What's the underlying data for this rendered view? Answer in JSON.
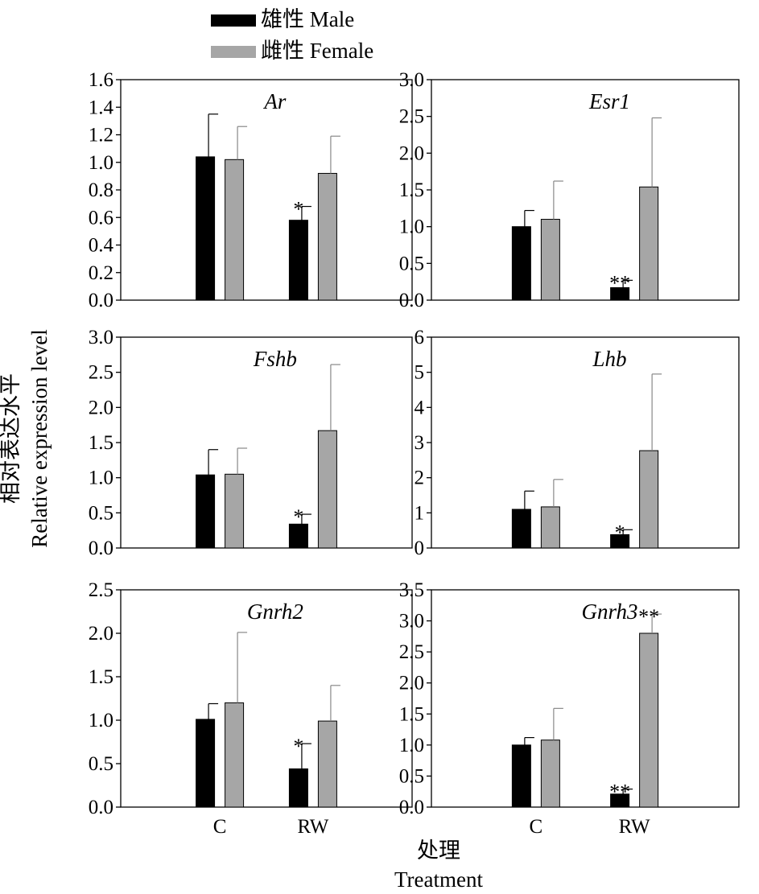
{
  "legend": {
    "male_label": "雄性 Male",
    "female_label": "雌性 Female"
  },
  "y_axis_title": {
    "zh": "相对表达水平",
    "en": "Relative expression level"
  },
  "x_axis_title": {
    "zh": "处理",
    "en": "Treatment"
  },
  "colors": {
    "male": "#000000",
    "female": "#a6a6a6",
    "axis": "#000000"
  },
  "chart_data": [
    {
      "type": "bar",
      "title": "Ar",
      "categories": [
        "C",
        "RW"
      ],
      "ylim": [
        0,
        1.6
      ],
      "yticks": [
        "0.0",
        "0.2",
        "0.4",
        "0.6",
        "0.8",
        "1.0",
        "1.2",
        "1.4",
        "1.6"
      ],
      "series": [
        {
          "name": "雄性 Male",
          "values": [
            1.04,
            0.58
          ],
          "errors": [
            0.31,
            0.1
          ],
          "significance": [
            "",
            "*"
          ]
        },
        {
          "name": "雌性 Female",
          "values": [
            1.02,
            0.92
          ],
          "errors": [
            0.24,
            0.27
          ],
          "significance": [
            "",
            ""
          ]
        }
      ]
    },
    {
      "type": "bar",
      "title": "Esr1",
      "categories": [
        "C",
        "RW"
      ],
      "ylim": [
        0,
        3.0
      ],
      "yticks": [
        "0.0",
        "0.5",
        "1.0",
        "1.5",
        "2.0",
        "2.5",
        "3.0"
      ],
      "series": [
        {
          "name": "雄性 Male",
          "values": [
            1.0,
            0.17
          ],
          "errors": [
            0.22,
            0.1
          ],
          "significance": [
            "",
            "**"
          ]
        },
        {
          "name": "雌性 Female",
          "values": [
            1.1,
            1.54
          ],
          "errors": [
            0.52,
            0.94
          ],
          "significance": [
            "",
            ""
          ]
        }
      ]
    },
    {
      "type": "bar",
      "title": "Fshb",
      "categories": [
        "C",
        "RW"
      ],
      "ylim": [
        0,
        3.0
      ],
      "yticks": [
        "0.0",
        "0.5",
        "1.0",
        "1.5",
        "2.0",
        "2.5",
        "3.0"
      ],
      "series": [
        {
          "name": "雄性 Male",
          "values": [
            1.04,
            0.34
          ],
          "errors": [
            0.36,
            0.14
          ],
          "significance": [
            "",
            "*"
          ]
        },
        {
          "name": "雌性 Female",
          "values": [
            1.05,
            1.67
          ],
          "errors": [
            0.37,
            0.94
          ],
          "significance": [
            "",
            ""
          ]
        }
      ]
    },
    {
      "type": "bar",
      "title": "Lhb",
      "categories": [
        "C",
        "RW"
      ],
      "ylim": [
        0,
        6
      ],
      "yticks": [
        "0",
        "1",
        "2",
        "3",
        "4",
        "5",
        "6"
      ],
      "series": [
        {
          "name": "雄性 Male",
          "values": [
            1.1,
            0.38
          ],
          "errors": [
            0.52,
            0.14
          ],
          "significance": [
            "",
            "*"
          ]
        },
        {
          "name": "雌性 Female",
          "values": [
            1.17,
            2.77
          ],
          "errors": [
            0.78,
            2.18
          ],
          "significance": [
            "",
            ""
          ]
        }
      ]
    },
    {
      "type": "bar",
      "title": "Gnrh2",
      "categories": [
        "C",
        "RW"
      ],
      "ylim": [
        0,
        2.5
      ],
      "yticks": [
        "0.0",
        "0.5",
        "1.0",
        "1.5",
        "2.0",
        "2.5"
      ],
      "series": [
        {
          "name": "雄性 Male",
          "values": [
            1.01,
            0.44
          ],
          "errors": [
            0.18,
            0.29
          ],
          "significance": [
            "",
            "*"
          ]
        },
        {
          "name": "雌性 Female",
          "values": [
            1.2,
            0.99
          ],
          "errors": [
            0.81,
            0.41
          ],
          "significance": [
            "",
            ""
          ]
        }
      ]
    },
    {
      "type": "bar",
      "title": "Gnrh3",
      "categories": [
        "C",
        "RW"
      ],
      "ylim": [
        0,
        3.5
      ],
      "yticks": [
        "0.0",
        "0.5",
        "1.0",
        "1.5",
        "2.0",
        "2.5",
        "3.0",
        "3.5"
      ],
      "series": [
        {
          "name": "雄性 Male",
          "values": [
            1.0,
            0.21
          ],
          "errors": [
            0.12,
            0.08
          ],
          "significance": [
            "",
            "**"
          ]
        },
        {
          "name": "雌性 Female",
          "values": [
            1.08,
            2.8
          ],
          "errors": [
            0.51,
            0.31
          ],
          "significance": [
            "",
            "**"
          ]
        }
      ]
    }
  ]
}
